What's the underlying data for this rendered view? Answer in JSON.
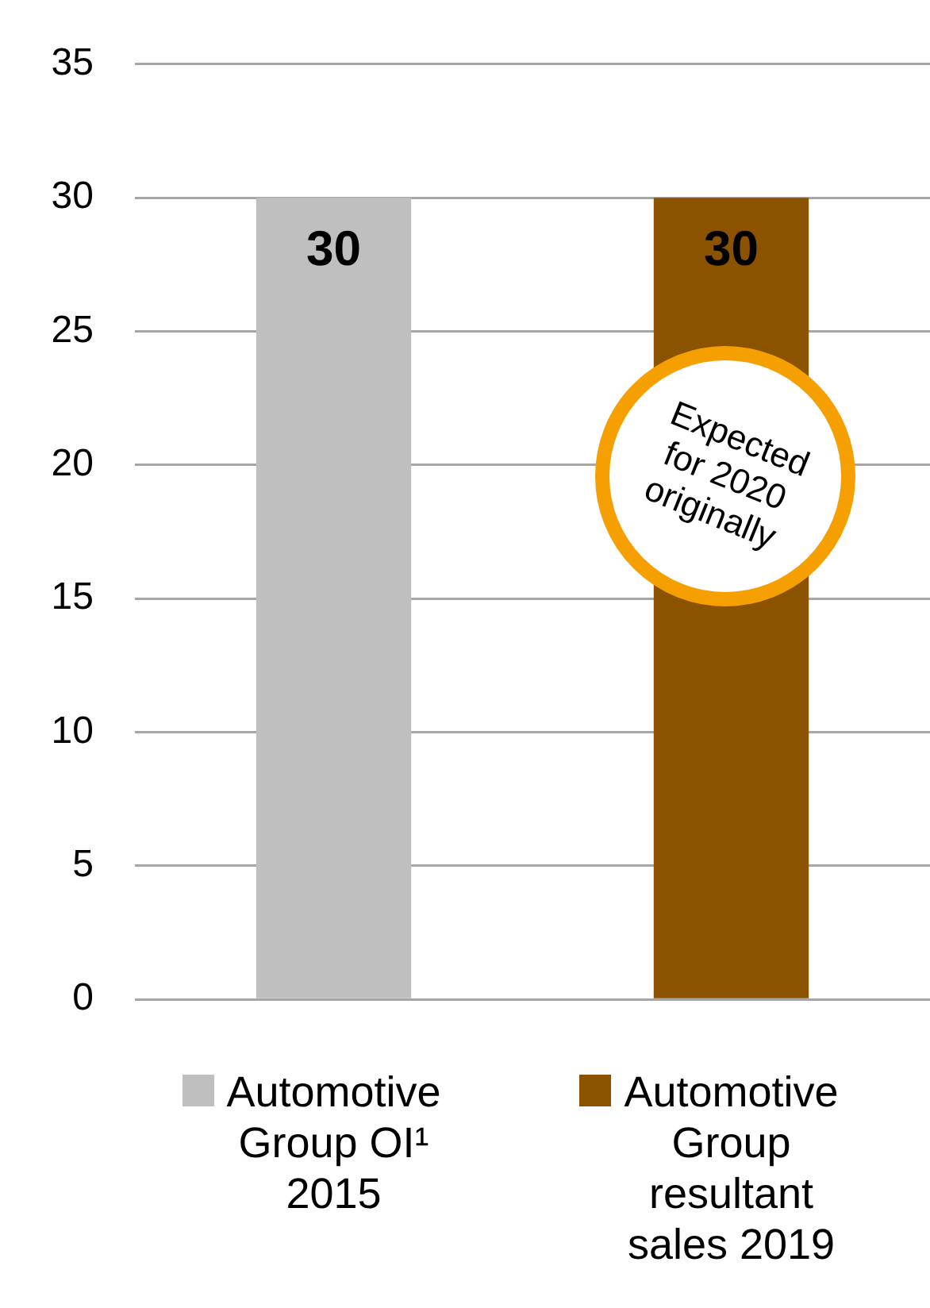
{
  "chart_data": {
    "type": "bar",
    "categories": [
      "Automotive Group OI¹ 2015",
      "Automotive Group resultant sales 2019"
    ],
    "values": [
      30,
      30
    ],
    "colors": [
      "#bfbfbf",
      "#8b5200"
    ],
    "ylim": [
      0,
      35
    ],
    "yticks": [
      0,
      5,
      10,
      15,
      20,
      25,
      30,
      35
    ],
    "grid": "y",
    "data_labels": true,
    "annotations": [
      "Expected for 2020 originally"
    ]
  }
}
